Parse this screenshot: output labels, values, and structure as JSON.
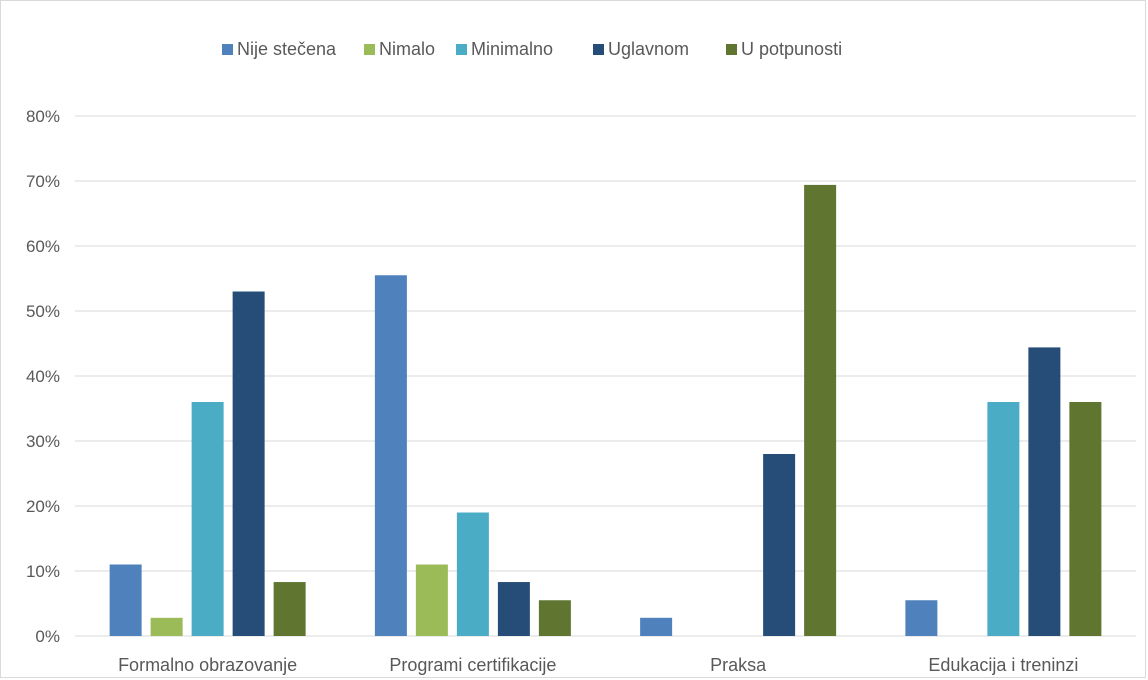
{
  "chart_data": {
    "type": "bar",
    "categories": [
      "Formalno obrazovanje",
      "Programi certifikacije",
      "Praksa",
      "Edukacija i treninzi"
    ],
    "series": [
      {
        "name": "Nije stečena",
        "color": "#4f81bd",
        "values": [
          11,
          55.5,
          2.8,
          5.5
        ]
      },
      {
        "name": "Nimalo",
        "color": "#9bbb59",
        "values": [
          2.8,
          11,
          0,
          0
        ]
      },
      {
        "name": "Minimalno",
        "color": "#4bacc6",
        "values": [
          36,
          19,
          0,
          36
        ]
      },
      {
        "name": "Uglavnom",
        "color": "#264d78",
        "values": [
          53,
          8.3,
          28,
          44.4
        ]
      },
      {
        "name": "U potpunosti",
        "color": "#5f7530",
        "values": [
          8.3,
          5.5,
          69.4,
          36
        ]
      }
    ],
    "ylim": [
      0,
      80
    ],
    "yticks": [
      0,
      10,
      20,
      30,
      40,
      50,
      60,
      70,
      80
    ],
    "ytick_labels": [
      "0%",
      "10%",
      "20%",
      "30%",
      "40%",
      "50%",
      "60%",
      "70%",
      "80%"
    ],
    "grid": true,
    "legend_position": "top"
  }
}
